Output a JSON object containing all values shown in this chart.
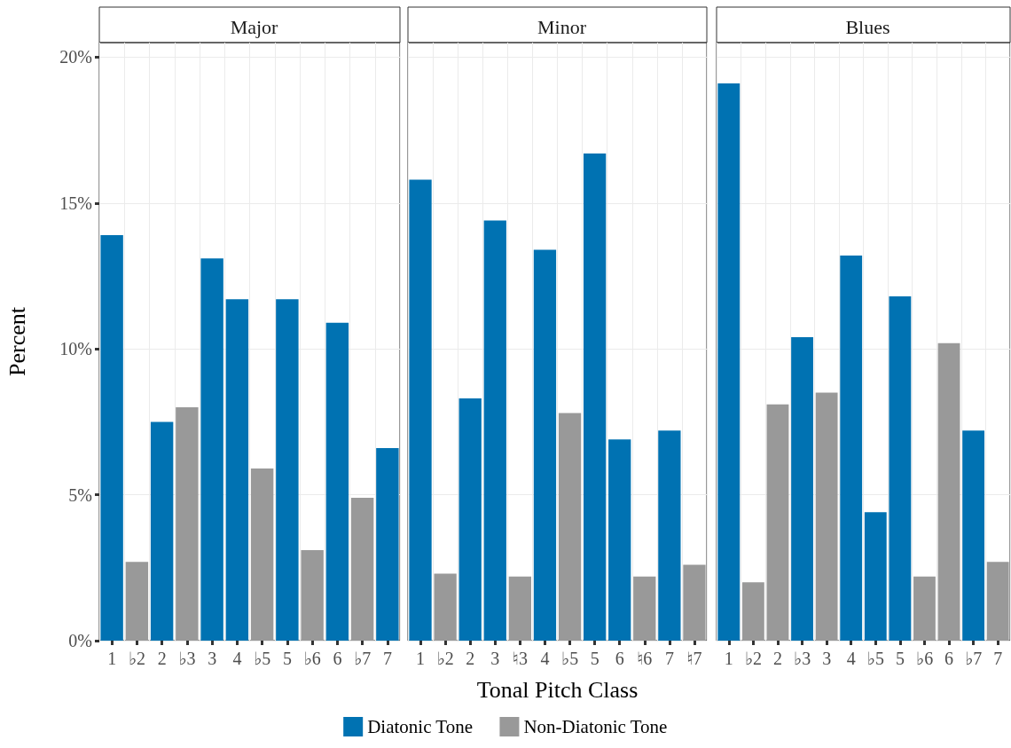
{
  "chart_data": [
    {
      "type": "bar",
      "title": "Major",
      "ylabel": "Percent",
      "categories": [
        "1",
        "♭2",
        "2",
        "♭3",
        "3",
        "4",
        "♭5",
        "5",
        "♭6",
        "6",
        "♭7",
        "7"
      ],
      "stacked": true,
      "series": [
        {
          "color": "#0072b2",
          "values": [
            13.9,
            null,
            7.5,
            null,
            13.1,
            11.7,
            null,
            11.7,
            null,
            10.9,
            null,
            6.6
          ]
        },
        {
          "color": "#999999",
          "values": [
            null,
            2.7,
            null,
            8.0,
            null,
            null,
            5.9,
            null,
            3.1,
            null,
            4.9,
            null
          ]
        }
      ],
      "ylim": [
        0,
        20.5
      ],
      "yticks": [
        {
          "value": 0,
          "label": "0%"
        },
        {
          "value": 5,
          "label": "5%"
        },
        {
          "value": 10,
          "label": "10%"
        },
        {
          "value": 15,
          "label": "15%"
        },
        {
          "value": 20,
          "label": "20%"
        }
      ],
      "grid": true
    },
    {
      "type": "bar",
      "title": "Minor",
      "xlabel": "Tonal Pitch Class",
      "categories": [
        "1",
        "♭2",
        "2",
        "3",
        "♮3",
        "4",
        "♭5",
        "5",
        "6",
        "♮6",
        "7",
        "♮7"
      ],
      "stacked": true,
      "series": [
        {
          "name": "Diatonic Tone",
          "color": "#0072b2",
          "values": [
            15.8,
            null,
            8.3,
            14.4,
            null,
            13.4,
            null,
            16.7,
            6.9,
            null,
            7.2,
            null
          ]
        },
        {
          "name": "Non-Diatonic Tone",
          "color": "#999999",
          "values": [
            null,
            2.3,
            null,
            null,
            2.2,
            null,
            7.8,
            null,
            null,
            2.2,
            null,
            2.6
          ]
        }
      ],
      "ylim": [
        0,
        20.5
      ],
      "yticks": [
        {
          "value": 0,
          "label": null
        },
        {
          "value": 5,
          "label": null
        },
        {
          "value": 10,
          "label": null
        },
        {
          "value": 15,
          "label": null
        },
        {
          "value": 20,
          "label": null
        }
      ],
      "grid": true,
      "tick_labels": "x",
      "legend": "bottom"
    },
    {
      "type": "bar",
      "title": "Blues",
      "categories": [
        "1",
        "♭2",
        "2",
        "♭3",
        "3",
        "4",
        "♭5",
        "5",
        "♭6",
        "6",
        "♭7",
        "7"
      ],
      "stacked": true,
      "series": [
        {
          "color": "#0072b2",
          "values": [
            19.1,
            null,
            null,
            10.4,
            null,
            13.2,
            4.4,
            11.8,
            null,
            null,
            7.2,
            null
          ]
        },
        {
          "color": "#999999",
          "values": [
            null,
            2.0,
            8.1,
            null,
            8.5,
            null,
            null,
            null,
            2.2,
            10.2,
            null,
            2.7
          ]
        }
      ],
      "ylim": [
        0,
        20.5
      ],
      "yticks": [
        {
          "value": 0,
          "label": null
        },
        {
          "value": 5,
          "label": null
        },
        {
          "value": 10,
          "label": null
        },
        {
          "value": 15,
          "label": null
        },
        {
          "value": 20,
          "label": null
        }
      ],
      "grid": true,
      "tick_labels": "x"
    }
  ]
}
